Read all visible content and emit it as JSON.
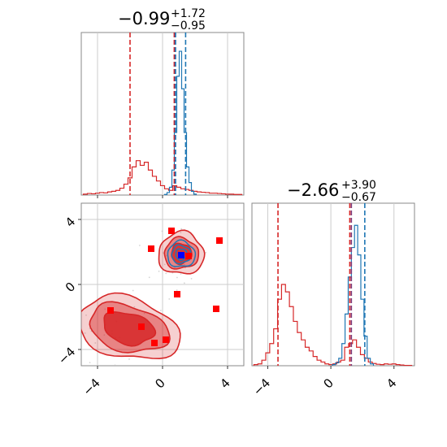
{
  "chart_data": {
    "type": "corner",
    "colors": {
      "red": "#d62728",
      "blue": "#1f77b4",
      "marker_red": "#ff0000",
      "marker_blue": "#0000ff",
      "grid": "#cccccc",
      "frame": "#888888"
    },
    "panels": [
      {
        "id": "hist-x",
        "type": "histogram",
        "title_main": "−0.99",
        "title_sup": "+1.72",
        "title_sub": "−0.95",
        "xlim": [
          -5,
          5
        ],
        "grid_x": [
          -4,
          0,
          4
        ],
        "series_red": {
          "centers": [
            -4.75,
            -4.5,
            -4.25,
            -4,
            -3.75,
            -3.5,
            -3.25,
            -3,
            -2.75,
            -2.5,
            -2.25,
            -2,
            -1.75,
            -1.5,
            -1.25,
            -1,
            -0.75,
            -0.5,
            -0.25,
            0,
            0.25,
            0.5,
            0.75,
            1,
            1.25,
            1.5,
            1.75,
            2,
            2.25,
            2.5,
            2.75,
            3,
            3.25,
            3.5,
            3.75,
            4,
            4.25,
            4.5,
            4.75
          ],
          "counts": [
            0.3,
            0.5,
            0.4,
            0.6,
            0.8,
            0.7,
            1.0,
            1.2,
            1.5,
            2.2,
            3.5,
            5.5,
            9,
            11,
            9.5,
            10.5,
            8,
            6,
            4.5,
            3,
            2,
            1.5,
            3,
            2.5,
            2,
            1.8,
            1.5,
            1.2,
            1,
            0.9,
            0.8,
            0.6,
            0.6,
            0.5,
            0.4,
            0.3,
            0.3,
            0.2,
            0.2
          ]
        },
        "series_blue": {
          "centers": [
            0.2,
            0.35,
            0.5,
            0.65,
            0.8,
            0.95,
            1.1,
            1.25,
            1.4,
            1.55,
            1.7,
            1.85,
            2.0
          ],
          "counts": [
            0.2,
            0.8,
            2.5,
            8,
            20,
            38,
            46,
            34,
            20,
            9,
            4,
            1.2,
            0.3
          ]
        },
        "count_max": 52,
        "vlines_red": [
          -2.0,
          0.72
        ],
        "vlines_red_purple": [
          0.78
        ],
        "vlines_blue": [
          0.8,
          1.42
        ]
      },
      {
        "id": "hist-y",
        "type": "histogram",
        "title_main": "−2.66",
        "title_sup": "+3.90",
        "title_sub": "−0.67",
        "xlim": [
          -5,
          5.3
        ],
        "grid_x": [
          -4,
          0,
          4
        ],
        "tick_labels": [
          "−4",
          "0",
          "4"
        ],
        "series_red": {
          "centers": [
            -4.75,
            -4.5,
            -4.25,
            -4,
            -3.75,
            -3.5,
            -3.25,
            -3,
            -2.75,
            -2.5,
            -2.25,
            -2,
            -1.75,
            -1.5,
            -1.25,
            -1,
            -0.75,
            -0.5,
            -0.25,
            0,
            0.25,
            0.5,
            0.75,
            1,
            1.25,
            1.5,
            1.75,
            2,
            2.25,
            2.5,
            2.75,
            3,
            3.25,
            3.5,
            3.75,
            4,
            4.25,
            4.5,
            4.75,
            5
          ],
          "counts": [
            0.3,
            0.5,
            1.5,
            3.5,
            6,
            10,
            18,
            22,
            20,
            16,
            12,
            9,
            7,
            5,
            4,
            2.5,
            1.5,
            1,
            0.5,
            0.3,
            0.5,
            1,
            1.5,
            5,
            6,
            7,
            5,
            3,
            2,
            1,
            0.6,
            0.4,
            0.3,
            0.5,
            0.4,
            0.5,
            0.3,
            0.2,
            0.1,
            0.1
          ]
        },
        "series_blue": {
          "centers": [
            0.2,
            0.4,
            0.6,
            0.8,
            1.0,
            1.2,
            1.4,
            1.6,
            1.8,
            2.0,
            2.2,
            2.4,
            2.6
          ],
          "counts": [
            0.3,
            0.8,
            2,
            6,
            14,
            24,
            32,
            38,
            30,
            18,
            8,
            2,
            0.5
          ]
        },
        "count_max": 44,
        "vlines_red": [
          -3.35,
          1.2
        ],
        "vlines_red_purple": [
          1.3
        ],
        "vlines_blue": [
          2.15
        ]
      },
      {
        "id": "scatter-2d",
        "type": "contour",
        "xlim": [
          -5,
          5
        ],
        "ylim": [
          -5,
          5
        ],
        "grid": [
          -4,
          0,
          4
        ],
        "x_tick_labels": [
          "−4",
          "0",
          "4"
        ],
        "y_tick_labels": [
          "−4",
          "0",
          "4"
        ],
        "red_blob_upper": {
          "cx": 1.15,
          "cy": 1.9,
          "rx": [
            0.62,
            1.05,
            1.4
          ],
          "ry": [
            0.62,
            0.95,
            1.3
          ]
        },
        "red_blob_lower": {
          "cx": -2.1,
          "cy": -2.7,
          "rx": [
            1.6,
            2.5,
            3.2
          ],
          "ry": [
            0.95,
            1.4,
            1.85
          ]
        },
        "blue_contour": {
          "cx": 1.15,
          "cy": 1.85,
          "rx": [
            0.35,
            0.6,
            0.85
          ],
          "ry": [
            0.35,
            0.55,
            0.8
          ]
        },
        "markers_red": [
          [
            0.55,
            3.3
          ],
          [
            -0.7,
            2.2
          ],
          [
            3.5,
            2.7
          ],
          [
            1.6,
            1.75
          ],
          [
            0.9,
            -0.6
          ],
          [
            -3.2,
            -1.6
          ],
          [
            -1.3,
            -2.6
          ],
          [
            -0.5,
            -3.6
          ],
          [
            0.2,
            -3.4
          ],
          [
            3.3,
            -1.5
          ]
        ],
        "marker_blue": [
          1.15,
          1.8
        ]
      }
    ]
  }
}
